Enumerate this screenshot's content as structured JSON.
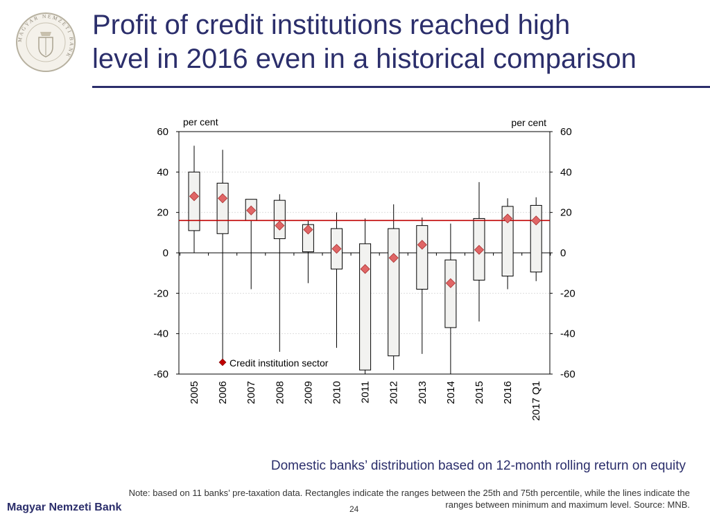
{
  "header": {
    "title_line1": "Profit of credit institutions reached high",
    "title_line2": "level in 2016 even in a historical comparison"
  },
  "logo": {
    "icon": "mnb-seal-icon",
    "text": "MAGYAR NEMZETI BANK"
  },
  "colors": {
    "title": "#2b2e6b",
    "box_fill": "#f2f2f0",
    "marker": "#e06666",
    "reference_line": "#c00000"
  },
  "chart_data": {
    "type": "box",
    "categories": [
      "2005",
      "2006",
      "2007",
      "2008",
      "2009",
      "2010",
      "2011",
      "2012",
      "2013",
      "2014",
      "2015",
      "2016",
      "2017 Q1"
    ],
    "series": [
      {
        "kind": "range",
        "min": [
          0,
          -55,
          -18,
          -49,
          -15,
          -47,
          -60,
          -58,
          -50,
          -60,
          -34,
          -18,
          -14
        ],
        "q1": [
          11,
          9.5,
          16,
          7,
          0.5,
          -8,
          -58,
          -51,
          -18,
          -37,
          -13.5,
          -11.5,
          -9.5
        ],
        "q3": [
          40,
          34.5,
          26.5,
          26,
          14,
          12,
          4.5,
          12,
          13.5,
          -3.5,
          17,
          23,
          23.5
        ],
        "max": [
          53,
          51,
          26.5,
          29,
          16,
          20,
          17,
          24,
          17.5,
          14.5,
          35,
          27,
          27.5
        ]
      },
      {
        "name": "Credit institution sector",
        "kind": "marker",
        "values": [
          28,
          27,
          21,
          13.5,
          11.5,
          2,
          -8,
          -2.5,
          4,
          -15,
          1.5,
          17,
          16
        ]
      }
    ],
    "reference_line": 16,
    "ylim": [
      -60,
      60
    ],
    "yticks": [
      "60",
      "40",
      "20",
      "0",
      "-20",
      "-40",
      "-60"
    ],
    "ylabel_left": "per cent",
    "ylabel_right": "per cent",
    "grid": true,
    "legend_position": "bottom-left"
  },
  "caption": "Domestic banks’ distribution based on 12-month rolling return on equity",
  "note": "Note: based on 11 banks’ pre-taxation data. Rectangles indicate the ranges between the 25th and 75th percentile, while the lines indicate the ranges between minimum and maximum level. Source: MNB.",
  "footer": {
    "bank_name": "Magyar Nemzeti Bank",
    "page_number": "24"
  }
}
